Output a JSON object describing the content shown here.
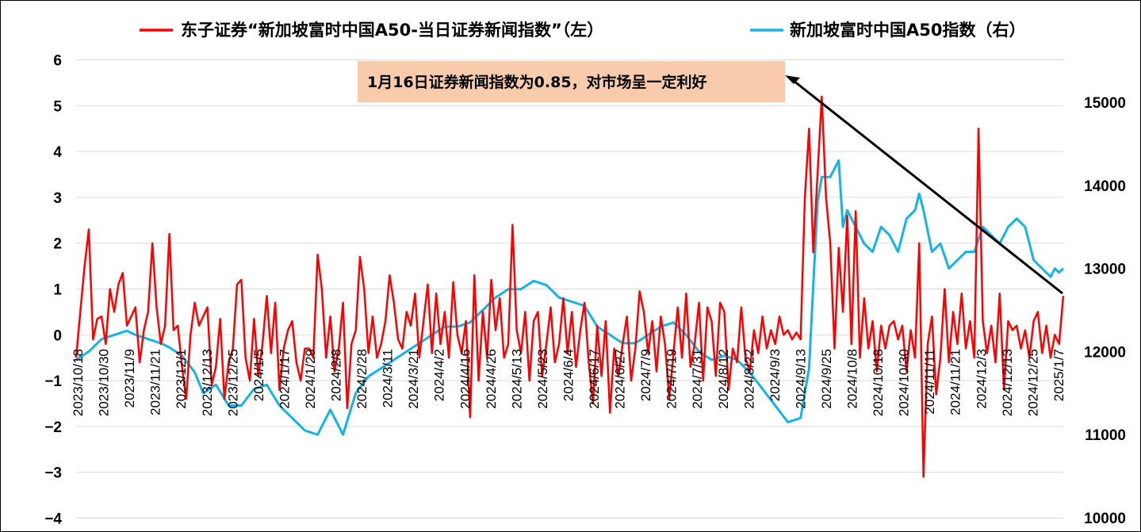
{
  "chart_data": {
    "type": "line",
    "title": "",
    "colors": {
      "left_series": "#ff0000",
      "right_series": "#14b4e8",
      "annotation_box": "#f8cbad",
      "arrow": "#000000"
    },
    "legend": {
      "placement": "top",
      "entries": [
        "东子证券“新加坡富时中国A50-当日证券新闻指数”（左）",
        "新加坡富时中国A50指数（右）"
      ]
    },
    "annotation": {
      "text": "1月16日证券新闻指数为0.85，对市场呈一定利好"
    },
    "left_axis": {
      "ylim": [
        -4,
        6
      ],
      "ticks": [
        "6",
        "5",
        "4",
        "3",
        "2",
        "1",
        "0",
        "−1",
        "−2",
        "−3",
        "−4"
      ]
    },
    "right_axis": {
      "ylim": [
        10000,
        15500
      ],
      "ticks": [
        "15000",
        "14000",
        "13000",
        "12000",
        "11000",
        "10000"
      ]
    },
    "x_ticks": [
      "2023/10/18",
      "2023/10/30",
      "2023/11/9",
      "2023/11/21",
      "2023/12/1",
      "2023/12/13",
      "2023/12/25",
      "2024/1/5",
      "2024/1/17",
      "2024/1/29",
      "2024/2/8",
      "2024/2/28",
      "2024/3/11",
      "2024/3/21",
      "2024/4/2",
      "2024/4/16",
      "2024/4/26",
      "2024/5/13",
      "2024/5/23",
      "2024/6/4",
      "2024/6/17",
      "2024/6/27",
      "2024/7/9",
      "2024/7/19",
      "2024/7/31",
      "2024/8/12",
      "2024/8/22",
      "2024/9/3",
      "2024/9/13",
      "2024/9/25",
      "2024/10/8",
      "2024/10/18",
      "2024/10/30",
      "2024/11/11",
      "2024/11/21",
      "2024/12/3",
      "2024/12/13",
      "2024/12/25",
      "2025/1/7"
    ],
    "series_left": {
      "name": "东子证券“新加坡富时中国A50-当日证券新闻指数”（左）",
      "anchors": [
        [
          0,
          -0.5
        ],
        [
          2,
          1.5
        ],
        [
          3,
          2.3
        ],
        [
          4,
          -0.1
        ],
        [
          5,
          0.35
        ],
        [
          6,
          0.4
        ],
        [
          7,
          -0.2
        ],
        [
          8,
          1.0
        ],
        [
          9,
          0.5
        ],
        [
          10,
          1.1
        ],
        [
          11,
          1.35
        ],
        [
          12,
          0.2
        ],
        [
          13,
          0.4
        ],
        [
          14,
          0.6
        ],
        [
          15,
          -0.6
        ],
        [
          16,
          0.1
        ],
        [
          17,
          0.5
        ],
        [
          18,
          2.0
        ],
        [
          19,
          0.6
        ],
        [
          20,
          -0.2
        ],
        [
          21,
          0.2
        ],
        [
          22,
          2.2
        ],
        [
          23,
          0.1
        ],
        [
          24,
          0.2
        ],
        [
          25,
          -0.7
        ],
        [
          26,
          -1.4
        ],
        [
          27,
          0.0
        ],
        [
          28,
          0.7
        ],
        [
          29,
          0.2
        ],
        [
          30,
          0.4
        ],
        [
          31,
          0.6
        ],
        [
          32,
          -1.1
        ],
        [
          33,
          -0.7
        ],
        [
          34,
          0.35
        ],
        [
          35,
          -1.4
        ],
        [
          36,
          -0.6
        ],
        [
          37,
          -0.3
        ],
        [
          38,
          1.1
        ],
        [
          39,
          1.2
        ],
        [
          40,
          -0.5
        ],
        [
          41,
          -1.0
        ],
        [
          42,
          0.35
        ],
        [
          43,
          -0.9
        ],
        [
          44,
          -0.2
        ],
        [
          45,
          0.85
        ],
        [
          46,
          -0.4
        ],
        [
          47,
          0.7
        ],
        [
          48,
          -1.2
        ],
        [
          49,
          -0.3
        ],
        [
          50,
          0.1
        ],
        [
          51,
          0.3
        ],
        [
          52,
          -0.6
        ],
        [
          53,
          -1.0
        ],
        [
          54,
          -0.3
        ],
        [
          55,
          -0.3
        ],
        [
          56,
          -0.5
        ],
        [
          57,
          1.75
        ],
        [
          58,
          1.0
        ],
        [
          59,
          -0.5
        ],
        [
          60,
          0.4
        ],
        [
          61,
          -0.8
        ],
        [
          62,
          -0.3
        ],
        [
          63,
          0.7
        ],
        [
          64,
          -1.6
        ],
        [
          65,
          -0.2
        ],
        [
          66,
          0.1
        ],
        [
          67,
          1.7
        ],
        [
          68,
          1.0
        ],
        [
          69,
          -0.4
        ],
        [
          70,
          0.4
        ],
        [
          71,
          -0.5
        ],
        [
          72,
          -0.2
        ],
        [
          73,
          0.3
        ],
        [
          74,
          1.3
        ],
        [
          75,
          0.7
        ],
        [
          76,
          -0.1
        ],
        [
          77,
          -0.3
        ],
        [
          78,
          0.5
        ],
        [
          79,
          0.2
        ],
        [
          80,
          0.9
        ],
        [
          81,
          -0.5
        ],
        [
          82,
          0.3
        ],
        [
          83,
          1.1
        ],
        [
          84,
          -0.4
        ],
        [
          85,
          0.9
        ],
        [
          86,
          -0.2
        ],
        [
          87,
          0.5
        ],
        [
          88,
          -0.5
        ],
        [
          89,
          1.15
        ],
        [
          90,
          0.0
        ],
        [
          91,
          -0.4
        ],
        [
          92,
          0.3
        ],
        [
          93,
          -1.8
        ],
        [
          94,
          1.3
        ],
        [
          95,
          -1.0
        ],
        [
          96,
          0.5
        ],
        [
          97,
          -0.5
        ],
        [
          98,
          1.2
        ],
        [
          99,
          0.1
        ],
        [
          100,
          0.8
        ],
        [
          101,
          -0.5
        ],
        [
          102,
          -0.2
        ],
        [
          103,
          2.4
        ],
        [
          104,
          0.1
        ],
        [
          105,
          -0.4
        ],
        [
          106,
          0.5
        ],
        [
          107,
          -1.0
        ],
        [
          108,
          0.3
        ],
        [
          109,
          0.5
        ],
        [
          110,
          -0.9
        ],
        [
          111,
          -0.2
        ],
        [
          112,
          0.6
        ],
        [
          113,
          -0.6
        ],
        [
          114,
          -0.2
        ],
        [
          115,
          0.8
        ],
        [
          116,
          -0.4
        ],
        [
          117,
          0.5
        ],
        [
          118,
          -0.7
        ],
        [
          119,
          0.1
        ],
        [
          120,
          0.7
        ],
        [
          121,
          -0.6
        ],
        [
          122,
          -1.5
        ],
        [
          123,
          0.2
        ],
        [
          124,
          -0.9
        ],
        [
          125,
          0.3
        ],
        [
          126,
          -1.7
        ],
        [
          127,
          -0.3
        ],
        [
          128,
          -0.9
        ],
        [
          129,
          -0.2
        ],
        [
          130,
          0.4
        ],
        [
          131,
          -1.0
        ],
        [
          132,
          -0.3
        ],
        [
          133,
          0.95
        ],
        [
          134,
          0.5
        ],
        [
          135,
          -0.4
        ],
        [
          136,
          0.3
        ],
        [
          137,
          -0.8
        ],
        [
          138,
          0.4
        ],
        [
          139,
          -0.2
        ],
        [
          140,
          -1.4
        ],
        [
          141,
          -0.4
        ],
        [
          142,
          0.6
        ],
        [
          143,
          -0.5
        ],
        [
          144,
          0.9
        ],
        [
          145,
          -0.7
        ],
        [
          146,
          -0.2
        ],
        [
          147,
          0.7
        ],
        [
          148,
          -1.0
        ],
        [
          149,
          0.6
        ],
        [
          150,
          0.3
        ],
        [
          151,
          -0.9
        ],
        [
          152,
          0.7
        ],
        [
          153,
          0.5
        ],
        [
          154,
          -1.2
        ],
        [
          155,
          -0.3
        ],
        [
          156,
          -0.6
        ],
        [
          157,
          0.6
        ],
        [
          158,
          -0.5
        ],
        [
          159,
          -0.8
        ],
        [
          160,
          0.1
        ],
        [
          161,
          -0.4
        ],
        [
          162,
          0.4
        ],
        [
          163,
          -0.3
        ],
        [
          164,
          0.1
        ],
        [
          165,
          -0.2
        ],
        [
          166,
          0.4
        ],
        [
          167,
          0.0
        ],
        [
          168,
          0.1
        ],
        [
          169,
          -0.1
        ],
        [
          170,
          0.05
        ],
        [
          171,
          -0.1
        ],
        [
          172,
          3.0
        ],
        [
          173,
          4.5
        ],
        [
          174,
          1.8
        ],
        [
          175,
          3.5
        ],
        [
          176,
          5.2
        ],
        [
          177,
          3.0
        ],
        [
          178,
          2.0
        ],
        [
          179,
          -0.3
        ],
        [
          180,
          1.9
        ],
        [
          181,
          0.5
        ],
        [
          182,
          2.6
        ],
        [
          183,
          -0.2
        ],
        [
          184,
          2.7
        ],
        [
          185,
          -0.5
        ],
        [
          186,
          0.8
        ],
        [
          187,
          -0.3
        ],
        [
          188,
          0.3
        ],
        [
          189,
          -0.8
        ],
        [
          190,
          0.2
        ],
        [
          191,
          -0.3
        ],
        [
          192,
          0.2
        ],
        [
          193,
          0.3
        ],
        [
          194,
          -0.1
        ],
        [
          195,
          0.2
        ],
        [
          196,
          -0.8
        ],
        [
          197,
          0.1
        ],
        [
          198,
          -0.5
        ],
        [
          199,
          2.0
        ],
        [
          200,
          -3.1
        ],
        [
          201,
          -0.2
        ],
        [
          202,
          0.4
        ],
        [
          203,
          -1.3
        ],
        [
          204,
          -0.5
        ],
        [
          205,
          1.0
        ],
        [
          206,
          -0.6
        ],
        [
          207,
          0.5
        ],
        [
          208,
          -0.2
        ],
        [
          209,
          0.9
        ],
        [
          210,
          -0.3
        ],
        [
          211,
          0.3
        ],
        [
          212,
          -0.5
        ],
        [
          213,
          4.5
        ],
        [
          214,
          0.3
        ],
        [
          215,
          -0.4
        ],
        [
          216,
          0.2
        ],
        [
          217,
          -0.6
        ],
        [
          218,
          0.9
        ],
        [
          219,
          -1.2
        ],
        [
          220,
          0.3
        ],
        [
          221,
          0.1
        ],
        [
          222,
          0.2
        ],
        [
          223,
          -0.3
        ],
        [
          224,
          0.1
        ],
        [
          225,
          -0.5
        ],
        [
          226,
          0.3
        ],
        [
          227,
          0.5
        ],
        [
          228,
          -0.4
        ],
        [
          229,
          0.2
        ],
        [
          230,
          -0.5
        ],
        [
          231,
          0.0
        ],
        [
          232,
          -0.2
        ],
        [
          233,
          0.85
        ]
      ]
    },
    "series_right": {
      "name": "新加坡富时中国A50指数（右）",
      "anchors": [
        [
          0,
          11900
        ],
        [
          3,
          12000
        ],
        [
          6,
          12150
        ],
        [
          9,
          12200
        ],
        [
          12,
          12250
        ],
        [
          14,
          12200
        ],
        [
          17,
          12150
        ],
        [
          20,
          12100
        ],
        [
          22,
          12050
        ],
        [
          25,
          11950
        ],
        [
          28,
          11750
        ],
        [
          30,
          11500
        ],
        [
          33,
          11600
        ],
        [
          36,
          11350
        ],
        [
          39,
          11350
        ],
        [
          42,
          11550
        ],
        [
          45,
          11600
        ],
        [
          48,
          11350
        ],
        [
          51,
          11200
        ],
        [
          54,
          11050
        ],
        [
          57,
          11000
        ],
        [
          60,
          11300
        ],
        [
          63,
          11000
        ],
        [
          66,
          11500
        ],
        [
          69,
          11700
        ],
        [
          72,
          11800
        ],
        [
          75,
          11900
        ],
        [
          78,
          12000
        ],
        [
          81,
          12100
        ],
        [
          84,
          12200
        ],
        [
          87,
          12300
        ],
        [
          90,
          12300
        ],
        [
          93,
          12350
        ],
        [
          96,
          12500
        ],
        [
          99,
          12650
        ],
        [
          102,
          12750
        ],
        [
          105,
          12750
        ],
        [
          108,
          12850
        ],
        [
          111,
          12800
        ],
        [
          114,
          12650
        ],
        [
          117,
          12600
        ],
        [
          120,
          12550
        ],
        [
          123,
          12300
        ],
        [
          126,
          12200
        ],
        [
          129,
          12100
        ],
        [
          132,
          12100
        ],
        [
          135,
          12200
        ],
        [
          138,
          12300
        ],
        [
          141,
          12350
        ],
        [
          144,
          12200
        ],
        [
          147,
          12000
        ],
        [
          150,
          11900
        ],
        [
          153,
          11950
        ],
        [
          156,
          11900
        ],
        [
          159,
          11750
        ],
        [
          162,
          11550
        ],
        [
          165,
          11350
        ],
        [
          168,
          11150
        ],
        [
          171,
          11200
        ],
        [
          173,
          11800
        ],
        [
          174,
          12800
        ],
        [
          175,
          13800
        ],
        [
          176,
          14100
        ],
        [
          178,
          14100
        ],
        [
          180,
          14300
        ],
        [
          181,
          13500
        ],
        [
          182,
          13700
        ],
        [
          184,
          13500
        ],
        [
          186,
          13300
        ],
        [
          188,
          13200
        ],
        [
          190,
          13500
        ],
        [
          192,
          13400
        ],
        [
          194,
          13200
        ],
        [
          196,
          13600
        ],
        [
          198,
          13700
        ],
        [
          199,
          13900
        ],
        [
          200,
          13700
        ],
        [
          202,
          13200
        ],
        [
          204,
          13300
        ],
        [
          206,
          13000
        ],
        [
          208,
          13100
        ],
        [
          210,
          13200
        ],
        [
          212,
          13200
        ],
        [
          214,
          13500
        ],
        [
          216,
          13400
        ],
        [
          218,
          13300
        ],
        [
          220,
          13500
        ],
        [
          222,
          13600
        ],
        [
          224,
          13500
        ],
        [
          226,
          13100
        ],
        [
          228,
          13000
        ],
        [
          230,
          12900
        ],
        [
          231,
          13000
        ],
        [
          232,
          12950
        ],
        [
          233,
          13000
        ]
      ]
    }
  }
}
